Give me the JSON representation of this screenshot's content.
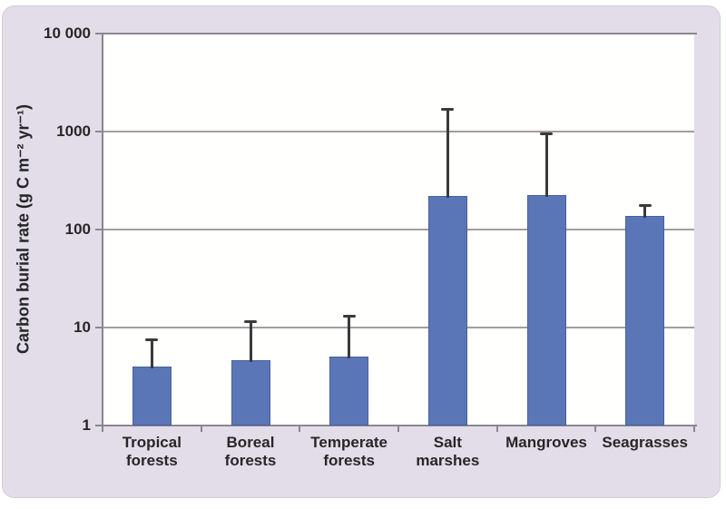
{
  "figure": {
    "panel_background": "#e2dde9",
    "panel_border_color": "#d6c9d6",
    "plot_background": "#fffffd"
  },
  "chart_data": {
    "type": "bar",
    "title": "",
    "xlabel": "",
    "ylabel": "Carbon burial rate (g C m⁻² yr⁻¹)",
    "y_scale": "log",
    "ylim": [
      1,
      10000
    ],
    "grid": true,
    "legend": null,
    "y_ticks": [
      {
        "value": 10000,
        "label": "10 000"
      },
      {
        "value": 1000,
        "label": "1000"
      },
      {
        "value": 100,
        "label": "100"
      },
      {
        "value": 10,
        "label": "10"
      },
      {
        "value": 1,
        "label": "1"
      }
    ],
    "categories": [
      "Tropical\nforests",
      "Boreal\nforests",
      "Temperate\nforests",
      "Salt\nmarshes",
      "Mangroves",
      "Seagrasses"
    ],
    "values": [
      4.0,
      4.6,
      5.1,
      218,
      226,
      138
    ],
    "error_upper": [
      7.6,
      11.7,
      13.1,
      1713,
      949,
      176
    ],
    "bar_color": "#5b76b7",
    "bar_border_color": "#47609c",
    "error_color": "#3a3a3a",
    "gridline_color": "#a39ca1",
    "axis_color": "#8a8790",
    "text_color": "#262626"
  }
}
